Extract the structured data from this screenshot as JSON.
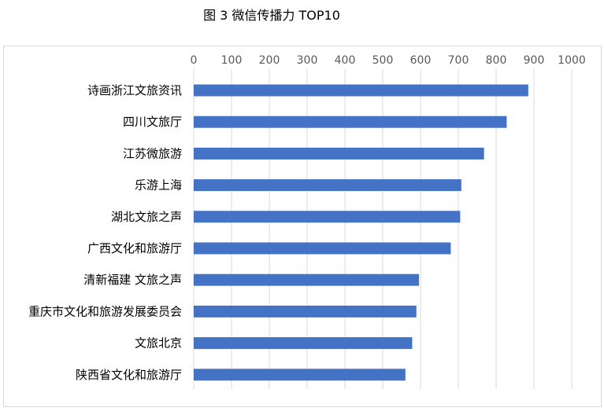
{
  "page": {
    "title": "图 3 微信传播力 TOP10"
  },
  "chart_data": {
    "type": "bar",
    "orientation": "horizontal",
    "title": "",
    "xlabel": "",
    "ylabel": "",
    "xlim": [
      0,
      1000
    ],
    "x_ticks": [
      "0",
      "100",
      "200",
      "300",
      "400",
      "500",
      "600",
      "700",
      "800",
      "900",
      "1000"
    ],
    "x_axis_position": "top",
    "grid": "vertical major gridlines",
    "legend": "none",
    "bar_color": "#4472C4",
    "gridline_color": "#d9d9d9",
    "categories": [
      "诗画浙江文旅资讯",
      "四川文旅厅",
      "江苏微旅游",
      "乐游上海",
      "湖北文旅之声",
      "广西文化和旅游厅",
      "清新福建 文旅之声",
      "重庆市文化和旅游发展委员会",
      "文旅北京",
      "陕西省文化和旅游厅"
    ],
    "values": [
      885,
      828,
      768,
      708,
      705,
      680,
      596,
      589,
      578,
      560
    ]
  }
}
